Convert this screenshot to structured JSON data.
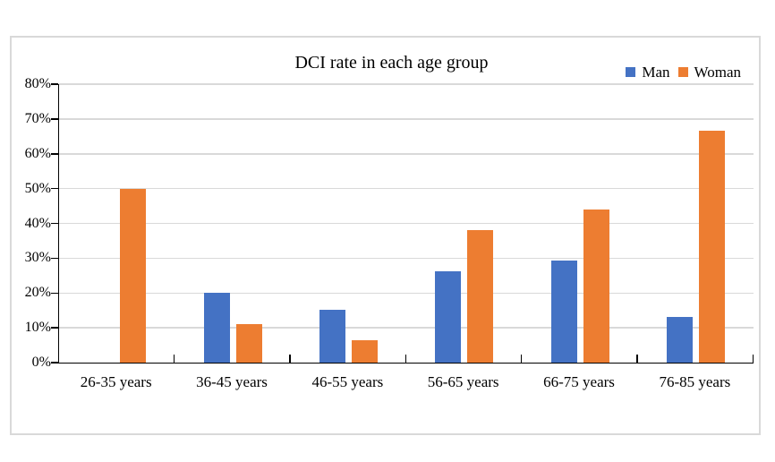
{
  "chart_data": {
    "type": "bar",
    "title": "DCI rate in each age group",
    "categories": [
      "26-35 years",
      "36-45 years",
      "46-55 years",
      "56-65 years",
      "66-75 years",
      "76-85 years"
    ],
    "series": [
      {
        "name": "Man",
        "color": "#4472C4",
        "values": [
          0,
          20,
          15.2,
          26.3,
          29.4,
          13.2
        ]
      },
      {
        "name": "Woman",
        "color": "#ED7D31",
        "values": [
          50,
          11.1,
          6.5,
          38.2,
          44.1,
          66.7
        ]
      }
    ],
    "xlabel": "",
    "ylabel": "",
    "ylim": [
      0,
      80
    ],
    "ytick_step": 10,
    "ytick_labels": [
      "0%",
      "10%",
      "20%",
      "30%",
      "40%",
      "50%",
      "60%",
      "70%",
      "80%"
    ],
    "grid": true,
    "legend_position": "top-right",
    "colors": {
      "grid": "#d9d9d9",
      "axis": "#000000",
      "frame_border": "#d9d9d9",
      "background": "#ffffff"
    }
  }
}
